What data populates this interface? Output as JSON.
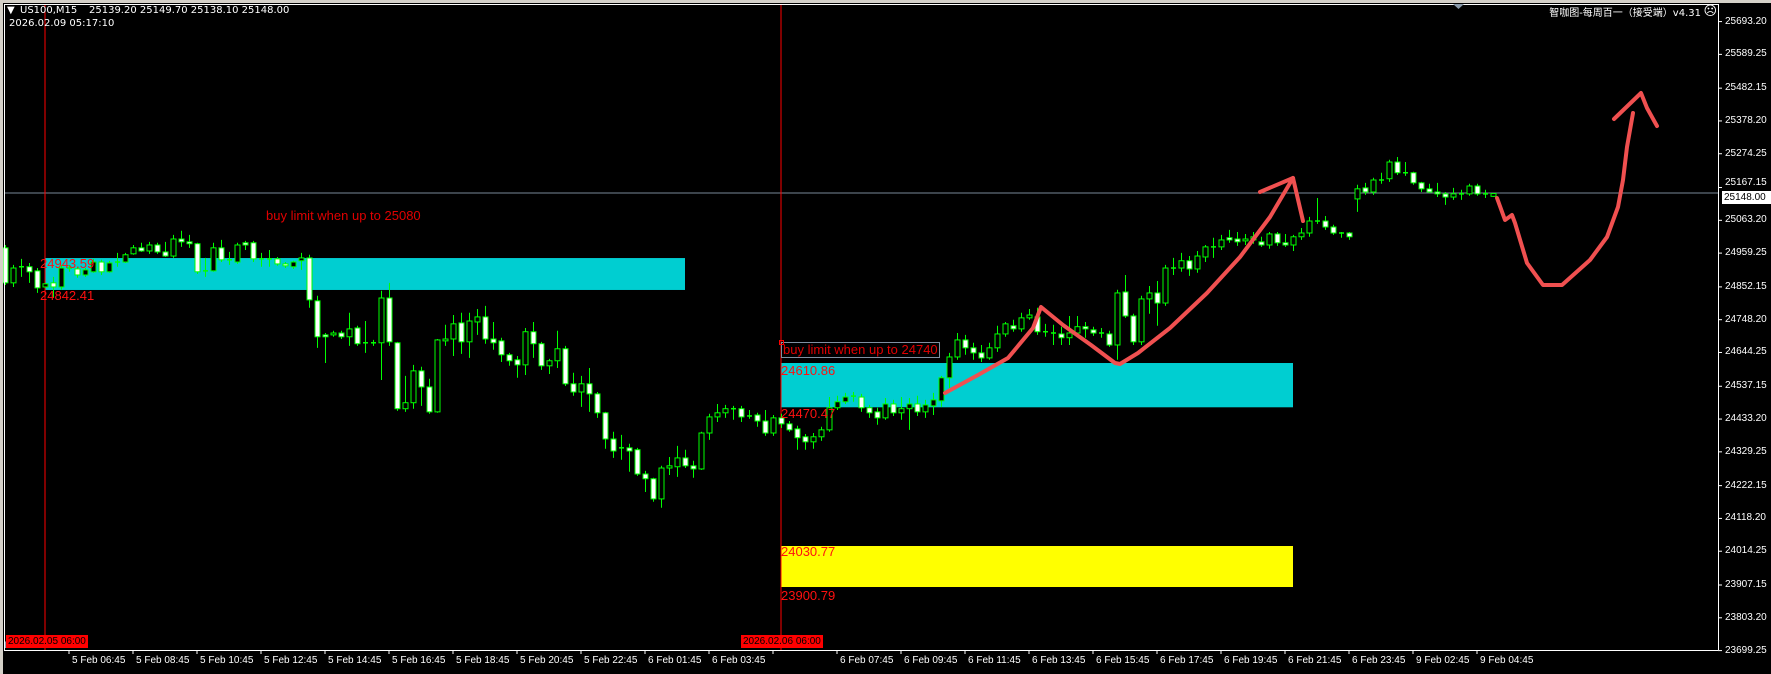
{
  "header": {
    "symbol_timeframe": "US100,M15",
    "ohlc": "25139.20 25149.70 25138.10 25148.00",
    "server_time": "2026.02.09 05:17:10",
    "indicator_name": "智咖图-每周百一（接受端）v4.31",
    "indicator_status_icon": "sad-face-icon"
  },
  "price_axis": {
    "labels": [
      "25693.20",
      "25589.25",
      "25482.15",
      "25378.20",
      "25274.25",
      "25167.15",
      "25063.20",
      "24959.25",
      "24852.15",
      "24748.20",
      "24644.25",
      "24537.15",
      "24433.20",
      "24329.25",
      "24222.15",
      "24118.20",
      "24014.25",
      "23907.15",
      "23803.20",
      "23699.25"
    ],
    "current_price": "25148.00"
  },
  "time_axis": {
    "labels": [
      "5 Feb 06:45",
      "5 Feb 08:45",
      "5 Feb 10:45",
      "5 Feb 12:45",
      "5 Feb 14:45",
      "5 Feb 16:45",
      "5 Feb 18:45",
      "5 Feb 20:45",
      "5 Feb 22:45",
      "6 Feb 01:45",
      "6 Feb 03:45",
      "",
      "6 Feb 07:45",
      "6 Feb 09:45",
      "6 Feb 11:45",
      "6 Feb 13:45",
      "6 Feb 15:45",
      "6 Feb 17:45",
      "6 Feb 19:45",
      "6 Feb 21:45",
      "6 Feb 23:45",
      "9 Feb 02:45",
      "9 Feb 04:45"
    ],
    "vline_labels": [
      "2026.02.05 06:00",
      "2026.02.06 06:00"
    ]
  },
  "zones": [
    {
      "top_label": "24943.59",
      "bottom_label": "24842.41",
      "top": 24943.59,
      "bottom": 24842.41,
      "color": "#00ced1",
      "note": "buy limit when up to 25080"
    },
    {
      "top_label": "24610.86",
      "bottom_label": "24470.47",
      "top": 24610.86,
      "bottom": 24470.47,
      "color": "#00ced1",
      "note": "buy limit when up to 24740"
    },
    {
      "top_label": "24030.77",
      "bottom_label": "23900.79",
      "top": 24030.77,
      "bottom": 23900.79,
      "color": "#ffff00"
    }
  ],
  "colors": {
    "background": "#000000",
    "candle_outline": "#00ff00",
    "bear_body": "#ffffff",
    "bull_body": "#000000",
    "drawing": "#f05050",
    "vline": "#ff0000",
    "bid_line": "#778899"
  },
  "chart_data": {
    "type": "candlestick",
    "series_note_columns": [
      "open",
      "high",
      "low",
      "close"
    ],
    "candles": [
      [
        24976,
        24985,
        24858,
        24865
      ],
      [
        24865,
        24922,
        24852,
        24912
      ],
      [
        24912,
        24941,
        24884,
        24916
      ],
      [
        24916,
        24928,
        24865,
        24900
      ],
      [
        24903,
        24912,
        24833,
        24849
      ],
      [
        24852,
        24865,
        24849,
        24862
      ],
      [
        24865,
        24884,
        24817,
        24852
      ],
      [
        24852,
        24922,
        24843,
        24912
      ],
      [
        24912,
        24922,
        24900,
        24909
      ],
      [
        24909,
        24916,
        24881,
        24890
      ],
      [
        24890,
        24912,
        24884,
        24906
      ],
      [
        24900,
        24941,
        24897,
        24931
      ],
      [
        24931,
        24938,
        24890,
        24900
      ],
      [
        24900,
        24935,
        24897,
        24928
      ],
      [
        24928,
        24960,
        24916,
        24931
      ],
      [
        24931,
        24960,
        24928,
        24954
      ],
      [
        24957,
        24985,
        24954,
        24976
      ],
      [
        24976,
        24992,
        24963,
        24966
      ],
      [
        24966,
        24995,
        24957,
        24985
      ],
      [
        24985,
        24992,
        24957,
        24963
      ],
      [
        24963,
        24995,
        24947,
        24950
      ],
      [
        24950,
        25017,
        24944,
        25004
      ],
      [
        25004,
        25030,
        24979,
        24995
      ],
      [
        24995,
        25017,
        24976,
        24989
      ],
      [
        24989,
        24992,
        24893,
        24900
      ],
      [
        24900,
        24944,
        24884,
        24903
      ],
      [
        24903,
        24992,
        24900,
        24976
      ],
      [
        24976,
        25001,
        24931,
        24938
      ],
      [
        24938,
        24963,
        24922,
        24935
      ],
      [
        24931,
        24992,
        24925,
        24985
      ],
      [
        24992,
        24998,
        24969,
        24985
      ],
      [
        24992,
        24998,
        24931,
        24941
      ],
      [
        24941,
        24960,
        24916,
        24938
      ],
      [
        24938,
        24969,
        24916,
        24941
      ],
      [
        24941,
        24947,
        24919,
        24925
      ],
      [
        24925,
        24931,
        24912,
        24919
      ],
      [
        24916,
        24935,
        24909,
        24931
      ],
      [
        24935,
        24960,
        24906,
        24944
      ],
      [
        24944,
        24954,
        24786,
        24811
      ],
      [
        24808,
        24824,
        24659,
        24694
      ],
      [
        24700,
        24706,
        24611,
        24694
      ],
      [
        24700,
        24713,
        24694,
        24706
      ],
      [
        24706,
        24713,
        24687,
        24694
      ],
      [
        24694,
        24770,
        24665,
        24719
      ],
      [
        24722,
        24729,
        24665,
        24672
      ],
      [
        24672,
        24744,
        24643,
        24675
      ],
      [
        24675,
        24684,
        24665,
        24672
      ],
      [
        24675,
        24840,
        24557,
        24817
      ],
      [
        24817,
        24865,
        24665,
        24678
      ],
      [
        24675,
        24678,
        24459,
        24466
      ],
      [
        24466,
        24570,
        24456,
        24485
      ],
      [
        24485,
        24605,
        24466,
        24586
      ],
      [
        24586,
        24599,
        24475,
        24535
      ],
      [
        24535,
        24561,
        24450,
        24456
      ],
      [
        24456,
        24687,
        24453,
        24684
      ],
      [
        24681,
        24732,
        24665,
        24687
      ],
      [
        24687,
        24763,
        24633,
        24735
      ],
      [
        24738,
        24770,
        24640,
        24678
      ],
      [
        24678,
        24770,
        24627,
        24744
      ],
      [
        24741,
        24782,
        24700,
        24757
      ],
      [
        24757,
        24792,
        24672,
        24687
      ],
      [
        24687,
        24741,
        24653,
        24675
      ],
      [
        24681,
        24691,
        24614,
        24637
      ],
      [
        24637,
        24643,
        24602,
        24618
      ],
      [
        24621,
        24633,
        24564,
        24605
      ],
      [
        24605,
        24722,
        24573,
        24710
      ],
      [
        24710,
        24741,
        24627,
        24672
      ],
      [
        24672,
        24678,
        24589,
        24602
      ],
      [
        24602,
        24624,
        24576,
        24618
      ],
      [
        24618,
        24713,
        24595,
        24656
      ],
      [
        24656,
        24665,
        24538,
        24545
      ],
      [
        24545,
        24580,
        24507,
        24519
      ],
      [
        24519,
        24570,
        24472,
        24545
      ],
      [
        24545,
        24595,
        24456,
        24513
      ],
      [
        24513,
        24519,
        24437,
        24453
      ],
      [
        24453,
        24456,
        24339,
        24370
      ],
      [
        24370,
        24393,
        24310,
        24332
      ],
      [
        24342,
        24383,
        24304,
        24339
      ],
      [
        24342,
        24355,
        24266,
        24332
      ],
      [
        24336,
        24342,
        24253,
        24259
      ],
      [
        24259,
        24269,
        24202,
        24244
      ],
      [
        24244,
        24247,
        24171,
        24180
      ],
      [
        24180,
        24285,
        24152,
        24278
      ],
      [
        24278,
        24313,
        24256,
        24285
      ],
      [
        24282,
        24348,
        24250,
        24310
      ],
      [
        24310,
        24336,
        24278,
        24285
      ],
      [
        24285,
        24301,
        24247,
        24275
      ],
      [
        24275,
        24393,
        24272,
        24389
      ],
      [
        24389,
        24450,
        24367,
        24440
      ],
      [
        24440,
        24481,
        24424,
        24453
      ],
      [
        24453,
        24478,
        24437,
        24466
      ],
      [
        24462,
        24475,
        24431,
        24466
      ],
      [
        24466,
        24475,
        24424,
        24440
      ],
      [
        24443,
        24462,
        24434,
        24440
      ],
      [
        24446,
        24453,
        24409,
        24427
      ],
      [
        24427,
        24462,
        24380,
        24389
      ],
      [
        24389,
        24446,
        24380,
        24437
      ],
      [
        24437,
        24450,
        24405,
        24418
      ],
      [
        24418,
        24427,
        24393,
        24399
      ],
      [
        24402,
        24412,
        24336,
        24374
      ],
      [
        24377,
        24386,
        24336,
        24361
      ],
      [
        24361,
        24389,
        24339,
        24377
      ],
      [
        24377,
        24409,
        24364,
        24399
      ],
      [
        24399,
        24503,
        24393,
        24469
      ],
      [
        24469,
        24507,
        24462,
        24488
      ],
      [
        24488,
        24516,
        24481,
        24503
      ],
      [
        24503,
        24519,
        24488,
        24506
      ],
      [
        24503,
        24513,
        24456,
        24469
      ],
      [
        24469,
        24478,
        24437,
        24453
      ],
      [
        24456,
        24469,
        24415,
        24437
      ],
      [
        24437,
        24500,
        24431,
        24481
      ],
      [
        24481,
        24494,
        24443,
        24453
      ],
      [
        24453,
        24503,
        24431,
        24466
      ],
      [
        24466,
        24500,
        24399,
        24481
      ],
      [
        24481,
        24507,
        24443,
        24456
      ],
      [
        24456,
        24494,
        24437,
        24478
      ],
      [
        24475,
        24516,
        24446,
        24494
      ],
      [
        24491,
        24570,
        24472,
        24564
      ],
      [
        24564,
        24643,
        24532,
        24630
      ],
      [
        24630,
        24706,
        24621,
        24684
      ],
      [
        24684,
        24700,
        24637,
        24659
      ],
      [
        24659,
        24675,
        24621,
        24643
      ],
      [
        24643,
        24668,
        24614,
        24627
      ],
      [
        24627,
        24675,
        24621,
        24659
      ],
      [
        24659,
        24729,
        24646,
        24703
      ],
      [
        24703,
        24741,
        24694,
        24735
      ],
      [
        24729,
        24748,
        24710,
        24719
      ],
      [
        24719,
        24770,
        24710,
        24754
      ],
      [
        24754,
        24782,
        24748,
        24763
      ],
      [
        24757,
        24786,
        24700,
        24710
      ],
      [
        24710,
        24735,
        24694,
        24706
      ],
      [
        24706,
        24732,
        24668,
        24703
      ],
      [
        24703,
        24726,
        24668,
        24691
      ],
      [
        24691,
        24760,
        24668,
        24706
      ],
      [
        24706,
        24760,
        24697,
        24726
      ],
      [
        24726,
        24741,
        24691,
        24719
      ],
      [
        24716,
        24726,
        24697,
        24706
      ],
      [
        24706,
        24722,
        24691,
        24703
      ],
      [
        24703,
        24713,
        24662,
        24668
      ],
      [
        24668,
        24843,
        24621,
        24833
      ],
      [
        24836,
        24890,
        24754,
        24760
      ],
      [
        24760,
        24767,
        24668,
        24678
      ],
      [
        24678,
        24824,
        24668,
        24814
      ],
      [
        24814,
        24855,
        24767,
        24833
      ],
      [
        24833,
        24871,
        24729,
        24801
      ],
      [
        24801,
        24922,
        24792,
        24912
      ],
      [
        24912,
        24944,
        24890,
        24912
      ],
      [
        24912,
        24960,
        24900,
        24935
      ],
      [
        24935,
        24950,
        24887,
        24909
      ],
      [
        24909,
        24966,
        24897,
        24950
      ],
      [
        24947,
        24985,
        24931,
        24979
      ],
      [
        24979,
        25008,
        24944,
        24979
      ],
      [
        24979,
        25017,
        24969,
        25001
      ],
      [
        25008,
        25033,
        24992,
        25001
      ],
      [
        25004,
        25026,
        24982,
        24995
      ],
      [
        24998,
        25020,
        24985,
        25004
      ],
      [
        25001,
        25026,
        24989,
        25011
      ],
      [
        24995,
        25011,
        24979,
        24985
      ],
      [
        24985,
        25026,
        24973,
        25020
      ],
      [
        25020,
        25026,
        24982,
        24992
      ],
      [
        24992,
        25020,
        24979,
        24985
      ],
      [
        24985,
        25017,
        24966,
        25011
      ],
      [
        25011,
        25039,
        25001,
        25023
      ],
      [
        25023,
        25074,
        25011,
        25061
      ],
      [
        25058,
        25134,
        25052,
        25061
      ],
      [
        25061,
        25077,
        25033,
        25042
      ],
      [
        25042,
        25049,
        25017,
        25023
      ],
      [
        25023,
        25026,
        25008,
        25020
      ],
      [
        25023,
        25026,
        25001,
        25011
      ],
      [
        25131,
        25176,
        25090,
        25163
      ],
      [
        25166,
        25182,
        25144,
        25153
      ],
      [
        25153,
        25198,
        25144,
        25191
      ],
      [
        25191,
        25214,
        25179,
        25191
      ],
      [
        25195,
        25255,
        25185,
        25248
      ],
      [
        25248,
        25264,
        25207,
        25214
      ],
      [
        25214,
        25248,
        25204,
        25214
      ],
      [
        25214,
        25217,
        25176,
        25182
      ],
      [
        25182,
        25185,
        25153,
        25163
      ],
      [
        25163,
        25179,
        25150,
        25153
      ],
      [
        25153,
        25182,
        25137,
        25147
      ],
      [
        25147,
        25153,
        25112,
        25137
      ],
      [
        25137,
        25166,
        25128,
        25147
      ],
      [
        25147,
        25160,
        25128,
        25147
      ],
      [
        25147,
        25179,
        25141,
        25172
      ],
      [
        25172,
        25179,
        25141,
        25147
      ],
      [
        25147,
        25160,
        25134,
        25147
      ],
      [
        25139.2,
        25149.7,
        25138.1,
        25148.0
      ]
    ]
  }
}
